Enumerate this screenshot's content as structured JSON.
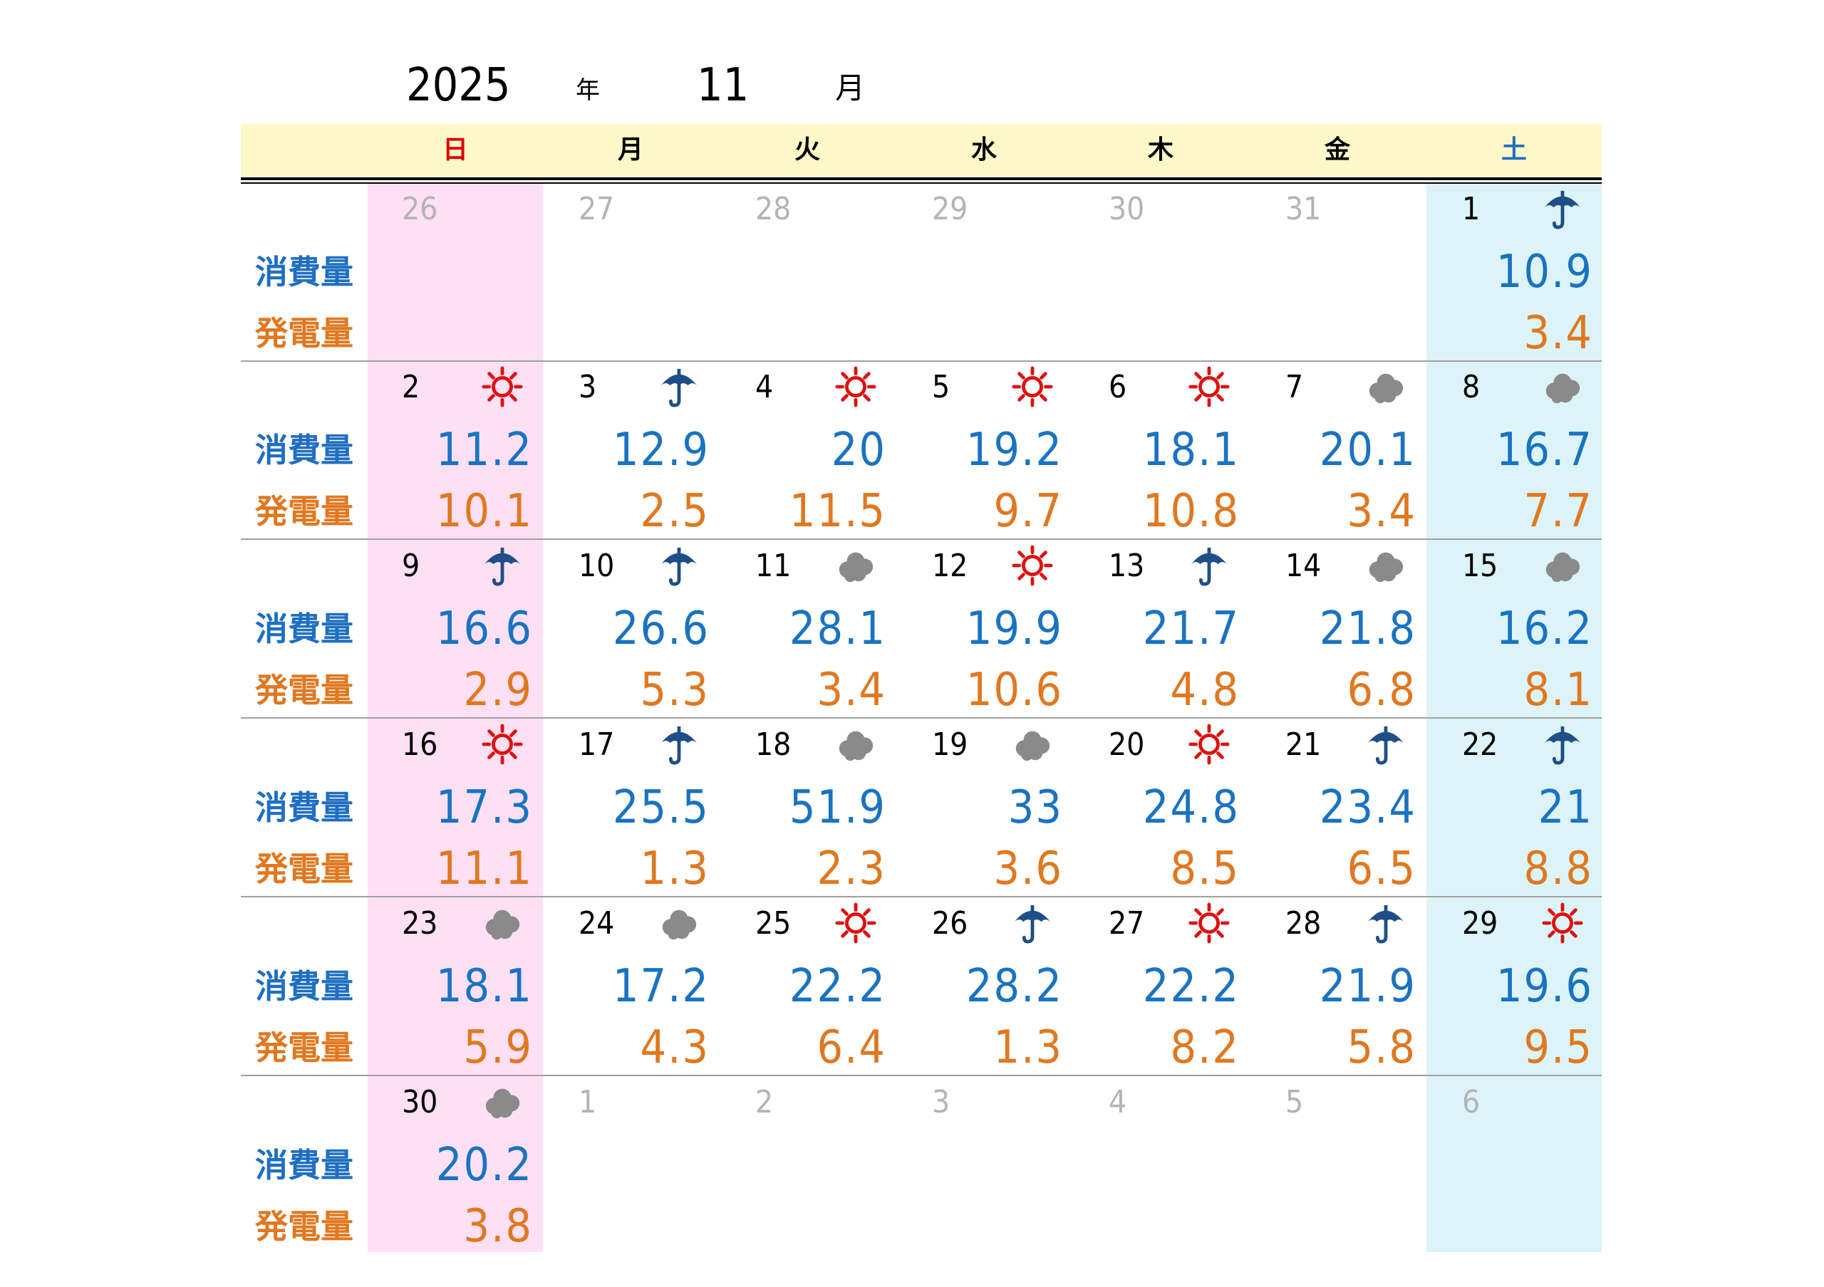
{
  "title": {
    "year": "2025",
    "year_unit": "年",
    "month": "11",
    "month_unit": "月"
  },
  "weekdays": [
    "日",
    "月",
    "火",
    "水",
    "木",
    "金",
    "土"
  ],
  "row_labels": {
    "consumption": "消費量",
    "generation": "発電量"
  },
  "colors": {
    "sunday": "#dd0000",
    "saturday": "#1f6fc1",
    "consumption": "#1a73c0",
    "generation": "#e07820",
    "header_bg": "#fdf8c8",
    "sunday_bg": "#fde0f4",
    "saturday_bg": "#dcf4f8"
  },
  "weeks": [
    [
      {
        "day": "26",
        "other": true
      },
      {
        "day": "27",
        "other": true
      },
      {
        "day": "28",
        "other": true
      },
      {
        "day": "29",
        "other": true
      },
      {
        "day": "30",
        "other": true
      },
      {
        "day": "31",
        "other": true
      },
      {
        "day": "1",
        "weather": "umbrella-icon",
        "consumption": "10.9",
        "generation": "3.4"
      }
    ],
    [
      {
        "day": "2",
        "weather": "sun-icon",
        "consumption": "11.2",
        "generation": "10.1"
      },
      {
        "day": "3",
        "weather": "umbrella-icon",
        "consumption": "12.9",
        "generation": "2.5"
      },
      {
        "day": "4",
        "weather": "sun-icon",
        "consumption": "20",
        "generation": "11.5"
      },
      {
        "day": "5",
        "weather": "sun-icon",
        "consumption": "19.2",
        "generation": "9.7"
      },
      {
        "day": "6",
        "weather": "sun-icon",
        "consumption": "18.1",
        "generation": "10.8"
      },
      {
        "day": "7",
        "weather": "cloud-icon",
        "consumption": "20.1",
        "generation": "3.4"
      },
      {
        "day": "8",
        "weather": "cloud-icon",
        "consumption": "16.7",
        "generation": "7.7"
      }
    ],
    [
      {
        "day": "9",
        "weather": "umbrella-icon",
        "consumption": "16.6",
        "generation": "2.9"
      },
      {
        "day": "10",
        "weather": "umbrella-icon",
        "consumption": "26.6",
        "generation": "5.3"
      },
      {
        "day": "11",
        "weather": "cloud-icon",
        "consumption": "28.1",
        "generation": "3.4"
      },
      {
        "day": "12",
        "weather": "sun-icon",
        "consumption": "19.9",
        "generation": "10.6"
      },
      {
        "day": "13",
        "weather": "umbrella-icon",
        "consumption": "21.7",
        "generation": "4.8"
      },
      {
        "day": "14",
        "weather": "cloud-icon",
        "consumption": "21.8",
        "generation": "6.8"
      },
      {
        "day": "15",
        "weather": "cloud-icon",
        "consumption": "16.2",
        "generation": "8.1"
      }
    ],
    [
      {
        "day": "16",
        "weather": "sun-icon",
        "consumption": "17.3",
        "generation": "11.1"
      },
      {
        "day": "17",
        "weather": "umbrella-icon",
        "consumption": "25.5",
        "generation": "1.3"
      },
      {
        "day": "18",
        "weather": "cloud-icon",
        "consumption": "51.9",
        "generation": "2.3"
      },
      {
        "day": "19",
        "weather": "cloud-icon",
        "consumption": "33",
        "generation": "3.6"
      },
      {
        "day": "20",
        "weather": "sun-icon",
        "consumption": "24.8",
        "generation": "8.5"
      },
      {
        "day": "21",
        "weather": "umbrella-icon",
        "consumption": "23.4",
        "generation": "6.5"
      },
      {
        "day": "22",
        "weather": "umbrella-icon",
        "consumption": "21",
        "generation": "8.8"
      }
    ],
    [
      {
        "day": "23",
        "weather": "cloud-icon",
        "consumption": "18.1",
        "generation": "5.9"
      },
      {
        "day": "24",
        "weather": "cloud-icon",
        "consumption": "17.2",
        "generation": "4.3"
      },
      {
        "day": "25",
        "weather": "sun-icon",
        "consumption": "22.2",
        "generation": "6.4"
      },
      {
        "day": "26",
        "weather": "umbrella-icon",
        "consumption": "28.2",
        "generation": "1.3"
      },
      {
        "day": "27",
        "weather": "sun-icon",
        "consumption": "22.2",
        "generation": "8.2"
      },
      {
        "day": "28",
        "weather": "umbrella-icon",
        "consumption": "21.9",
        "generation": "5.8"
      },
      {
        "day": "29",
        "weather": "sun-icon",
        "consumption": "19.6",
        "generation": "9.5"
      }
    ],
    [
      {
        "day": "30",
        "weather": "cloud-icon",
        "consumption": "20.2",
        "generation": "3.8"
      },
      {
        "day": "1",
        "other": true
      },
      {
        "day": "2",
        "other": true
      },
      {
        "day": "3",
        "other": true
      },
      {
        "day": "4",
        "other": true
      },
      {
        "day": "5",
        "other": true
      },
      {
        "day": "6",
        "other": true
      }
    ]
  ]
}
